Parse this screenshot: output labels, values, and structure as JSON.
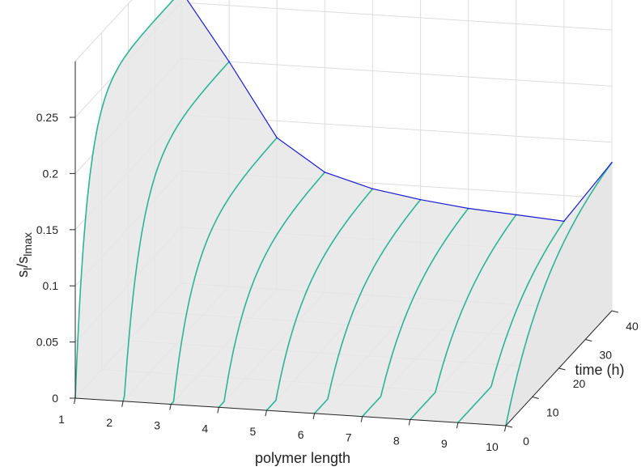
{
  "chart_data": {
    "type": "surface3d",
    "title": "",
    "xlabel": "polymer length",
    "ylabel": "time (h)",
    "zlabel_main": "s",
    "zlabel_sub1": "l",
    "zlabel_mid": "/s",
    "zlabel_sub2": "lmax",
    "xlim": [
      1,
      10
    ],
    "ylim": [
      0,
      40
    ],
    "zlim": [
      0,
      0.25
    ],
    "xticks": [
      "1",
      "2",
      "3",
      "4",
      "5",
      "6",
      "7",
      "8",
      "9",
      "10"
    ],
    "yticks": [
      "0",
      "10",
      "20",
      "30",
      "40"
    ],
    "zticks": [
      "0",
      "0.05",
      "0.1",
      "0.15",
      "0.2",
      "0.25"
    ],
    "grid": true,
    "final_time_h": 40,
    "final_distribution": {
      "polymer_length": [
        1,
        2,
        3,
        4,
        5,
        6,
        7,
        8,
        9,
        10
      ],
      "value": [
        0.26,
        0.2,
        0.135,
        0.107,
        0.095,
        0.088,
        0.083,
        0.08,
        0.077,
        0.132
      ]
    },
    "onset_time_h": [
      0,
      0.4,
      1.0,
      2.0,
      3.5,
      5.0,
      7.0,
      9.5,
      12.5,
      0.0
    ],
    "colors": {
      "time_curves": "#2bb594",
      "final_profile": "#1a1ad6",
      "surface": "#e6e6e6",
      "grid": "#dcdcdc",
      "axis": "#262626"
    }
  }
}
